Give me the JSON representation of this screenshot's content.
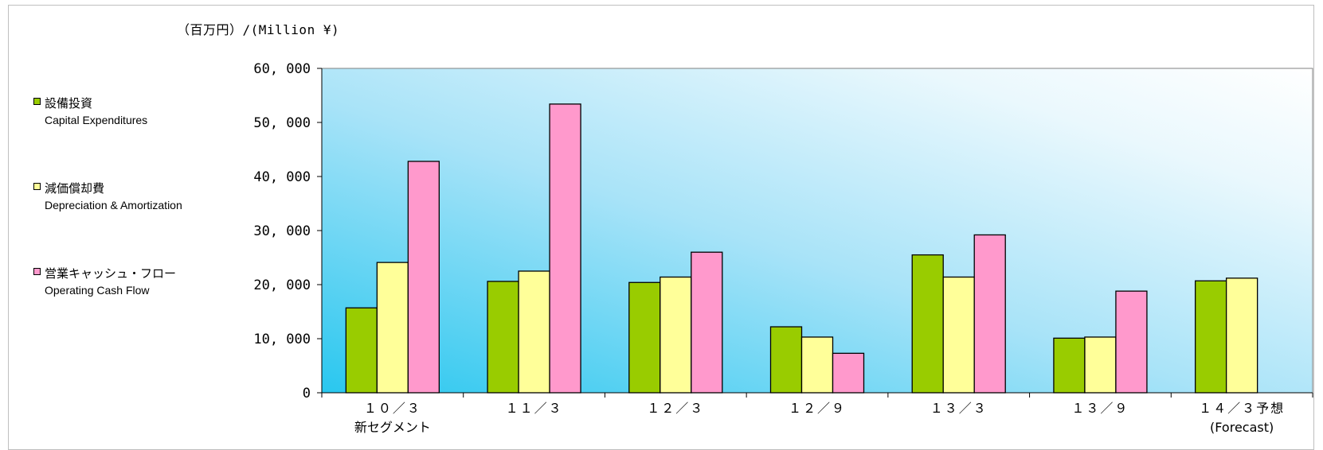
{
  "unit_label": "（百万円）/(Million ¥)",
  "legend": [
    {
      "jp": "設備投資",
      "en": "Capital Expenditures",
      "color": "#99cc00"
    },
    {
      "jp": "減価償却費",
      "en": "Depreciation & Amortization",
      "color": "#ffff99"
    },
    {
      "jp": "営業キャッシュ・フロー",
      "en": "Operating Cash Flow",
      "color": "#ff99cc"
    }
  ],
  "chart_data": {
    "type": "bar",
    "categories": [
      {
        "line1": "１０／３",
        "line2": "新セグメント"
      },
      {
        "line1": "１１／３",
        "line2": ""
      },
      {
        "line1": "１２／３",
        "line2": ""
      },
      {
        "line1": "１２／９",
        "line2": ""
      },
      {
        "line1": "１３／３",
        "line2": ""
      },
      {
        "line1": "１３／９",
        "line2": ""
      },
      {
        "line1": "１４／３予想",
        "line2": "(Forecast)"
      }
    ],
    "series": [
      {
        "name": "設備投資",
        "color": "#99cc00",
        "values": [
          15700,
          20600,
          20400,
          12200,
          25500,
          10100,
          20700
        ]
      },
      {
        "name": "減価償却費",
        "color": "#ffff99",
        "values": [
          24100,
          22500,
          21400,
          10300,
          21400,
          10300,
          21200
        ]
      },
      {
        "name": "営業キャッシュ・フロー",
        "color": "#ff99cc",
        "values": [
          42800,
          53400,
          26000,
          7300,
          29200,
          18800,
          null
        ]
      }
    ],
    "ylim": [
      0,
      60000
    ],
    "yticks": [
      {
        "value": 0,
        "label": "0"
      },
      {
        "value": 10000,
        "label": "10, 000"
      },
      {
        "value": 20000,
        "label": "20, 000"
      },
      {
        "value": 30000,
        "label": "30, 000"
      },
      {
        "value": 40000,
        "label": "40, 000"
      },
      {
        "value": 50000,
        "label": "50, 000"
      },
      {
        "value": 60000,
        "label": "60, 000"
      }
    ],
    "legend_position": "left",
    "grid": false
  }
}
